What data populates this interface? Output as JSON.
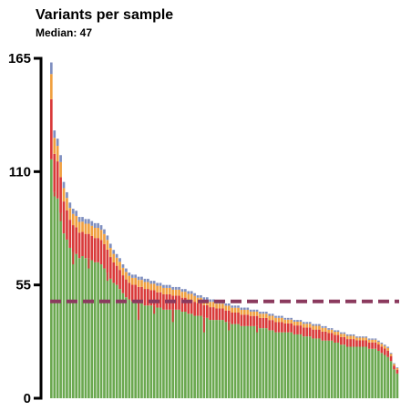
{
  "chart_data": {
    "type": "bar",
    "stacked": true,
    "title": "Variants per sample",
    "subtitle": "Median: 47",
    "xlabel": "",
    "ylabel": "",
    "ylim": [
      0,
      165
    ],
    "yticks": [
      0,
      55,
      110,
      165
    ],
    "ytick_labels": [
      "0",
      "55",
      "110",
      "165"
    ],
    "grid": false,
    "legend": "none",
    "median_line": {
      "value": 47,
      "color": "#8b3a5e",
      "style": "dashed"
    },
    "series_colors": [
      "#6aa84f",
      "#d93a3a",
      "#f0a040",
      "#7f8fc0"
    ],
    "totals": [
      163,
      130,
      126,
      118,
      105,
      100,
      95,
      92,
      91,
      88,
      88,
      87,
      87,
      86,
      85,
      85,
      84,
      82,
      79,
      75,
      72,
      70,
      68,
      65,
      63,
      61,
      60,
      60,
      59,
      59,
      58,
      58,
      57,
      57,
      56,
      56,
      55,
      55,
      55,
      54,
      54,
      54,
      53,
      53,
      52,
      52,
      51,
      50,
      50,
      49,
      49,
      48,
      48,
      47,
      47,
      47,
      46,
      46,
      45,
      45,
      45,
      44,
      44,
      44,
      43,
      43,
      43,
      42,
      42,
      42,
      41,
      41,
      40,
      40,
      40,
      39,
      39,
      39,
      38,
      38,
      38,
      37,
      37,
      37,
      36,
      36,
      36,
      35,
      35,
      34,
      34,
      33,
      33,
      32,
      32,
      31,
      31,
      31,
      30,
      30,
      30,
      30,
      29,
      29,
      29,
      28,
      27,
      26,
      25,
      22,
      17,
      15
    ],
    "primary": [
      116,
      100,
      97,
      90,
      80,
      77,
      73,
      71,
      70,
      68,
      69,
      68,
      68,
      67,
      66,
      66,
      65,
      63,
      61,
      58,
      56,
      55,
      53,
      51,
      49,
      48,
      47,
      47,
      46,
      46,
      45,
      45,
      45,
      45,
      44,
      44,
      43,
      43,
      43,
      43,
      43,
      43,
      42,
      42,
      41,
      41,
      40,
      40,
      40,
      39,
      39,
      38,
      38,
      38,
      38,
      38,
      37,
      37,
      36,
      36,
      36,
      35,
      35,
      35,
      35,
      35,
      35,
      34,
      34,
      34,
      33,
      33,
      32,
      32,
      32,
      32,
      32,
      32,
      31,
      31,
      31,
      30,
      30,
      30,
      29,
      29,
      29,
      28,
      28,
      28,
      28,
      27,
      27,
      26,
      26,
      25,
      25,
      25,
      25,
      25,
      25,
      25,
      24,
      24,
      24,
      23,
      22,
      21,
      20,
      18,
      14,
      12
    ],
    "dips": [
      0,
      2,
      0,
      4,
      0,
      0,
      0,
      6,
      0,
      0,
      0,
      0,
      5,
      0,
      0,
      0,
      0,
      0,
      4,
      0,
      0,
      0,
      0,
      0,
      0,
      0,
      0,
      0,
      8,
      0,
      0,
      0,
      0,
      4,
      0,
      0,
      0,
      0,
      0,
      6,
      0,
      0,
      0,
      0,
      0,
      0,
      0,
      0,
      0,
      7,
      0,
      0,
      0,
      0,
      0,
      0,
      0,
      4,
      0,
      0,
      0,
      0,
      0,
      0,
      0,
      0,
      3,
      0,
      0,
      0,
      0,
      0,
      0,
      0,
      0,
      0,
      0,
      0,
      0,
      0,
      0,
      0,
      0,
      0,
      0,
      0,
      0,
      0,
      0,
      0,
      0,
      0,
      0,
      0,
      0,
      0,
      0,
      0,
      0,
      0,
      0,
      0,
      0,
      0,
      0,
      0,
      0,
      0,
      0,
      0,
      0,
      0
    ]
  }
}
